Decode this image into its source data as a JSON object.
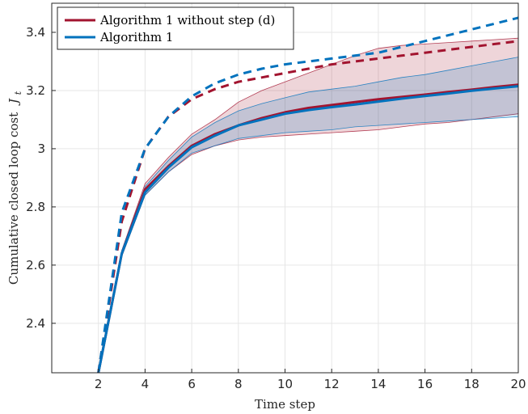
{
  "chart_data": {
    "type": "line",
    "xlabel": "Time step",
    "ylabel": "Cumulative closed loop cost",
    "ylabel_symbol": "J",
    "ylabel_subscript": "t",
    "xlim": [
      0,
      20
    ],
    "ylim": [
      2.23,
      3.5
    ],
    "xticks": [
      2,
      4,
      6,
      8,
      10,
      12,
      14,
      16,
      18,
      20
    ],
    "yticks": [
      2.4,
      2.6,
      2.8,
      3.0,
      3.2,
      3.4
    ],
    "ytick_labels": [
      "2.4",
      "2.6",
      "2.8",
      "3",
      "3.2",
      "3.4"
    ],
    "grid": true,
    "legend_position": "top-left",
    "x": [
      2,
      3,
      4,
      5,
      6,
      7,
      8,
      9,
      10,
      11,
      12,
      13,
      14,
      15,
      16,
      17,
      18,
      19,
      20
    ],
    "series": [
      {
        "name": "Algorithm 1 without step (d)",
        "color": "#a2142f",
        "mean": [
          2.23,
          2.64,
          2.86,
          2.94,
          3.01,
          3.05,
          3.08,
          3.105,
          3.125,
          3.14,
          3.15,
          3.16,
          3.17,
          3.178,
          3.186,
          3.195,
          3.203,
          3.212,
          3.22
        ],
        "upper": [
          2.23,
          2.65,
          2.88,
          2.97,
          3.05,
          3.1,
          3.16,
          3.2,
          3.23,
          3.26,
          3.29,
          3.32,
          3.345,
          3.355,
          3.36,
          3.365,
          3.37,
          3.375,
          3.38
        ],
        "lower": [
          2.23,
          2.63,
          2.84,
          2.92,
          2.98,
          3.01,
          3.03,
          3.04,
          3.045,
          3.05,
          3.055,
          3.06,
          3.065,
          3.075,
          3.085,
          3.09,
          3.1,
          3.11,
          3.12
        ],
        "dashed": [
          2.23,
          2.75,
          3.0,
          3.11,
          3.17,
          3.205,
          3.23,
          3.245,
          3.26,
          3.275,
          3.29,
          3.3,
          3.31,
          3.32,
          3.33,
          3.34,
          3.35,
          3.36,
          3.37
        ]
      },
      {
        "name": "Algorithm 1",
        "color": "#0072bd",
        "mean": [
          2.23,
          2.64,
          2.85,
          2.935,
          3.005,
          3.045,
          3.08,
          3.1,
          3.12,
          3.133,
          3.143,
          3.152,
          3.162,
          3.172,
          3.181,
          3.19,
          3.199,
          3.207,
          3.215
        ],
        "upper": [
          2.23,
          2.65,
          2.87,
          2.96,
          3.04,
          3.09,
          3.13,
          3.155,
          3.175,
          3.195,
          3.205,
          3.215,
          3.23,
          3.245,
          3.255,
          3.27,
          3.285,
          3.3,
          3.315
        ],
        "lower": [
          2.23,
          2.63,
          2.84,
          2.92,
          2.985,
          3.01,
          3.035,
          3.045,
          3.055,
          3.06,
          3.065,
          3.075,
          3.08,
          3.085,
          3.09,
          3.095,
          3.1,
          3.105,
          3.11
        ],
        "dashed": [
          2.23,
          2.78,
          3.0,
          3.11,
          3.18,
          3.225,
          3.255,
          3.275,
          3.29,
          3.3,
          3.31,
          3.32,
          3.33,
          3.35,
          3.37,
          3.39,
          3.41,
          3.43,
          3.45
        ]
      }
    ]
  }
}
